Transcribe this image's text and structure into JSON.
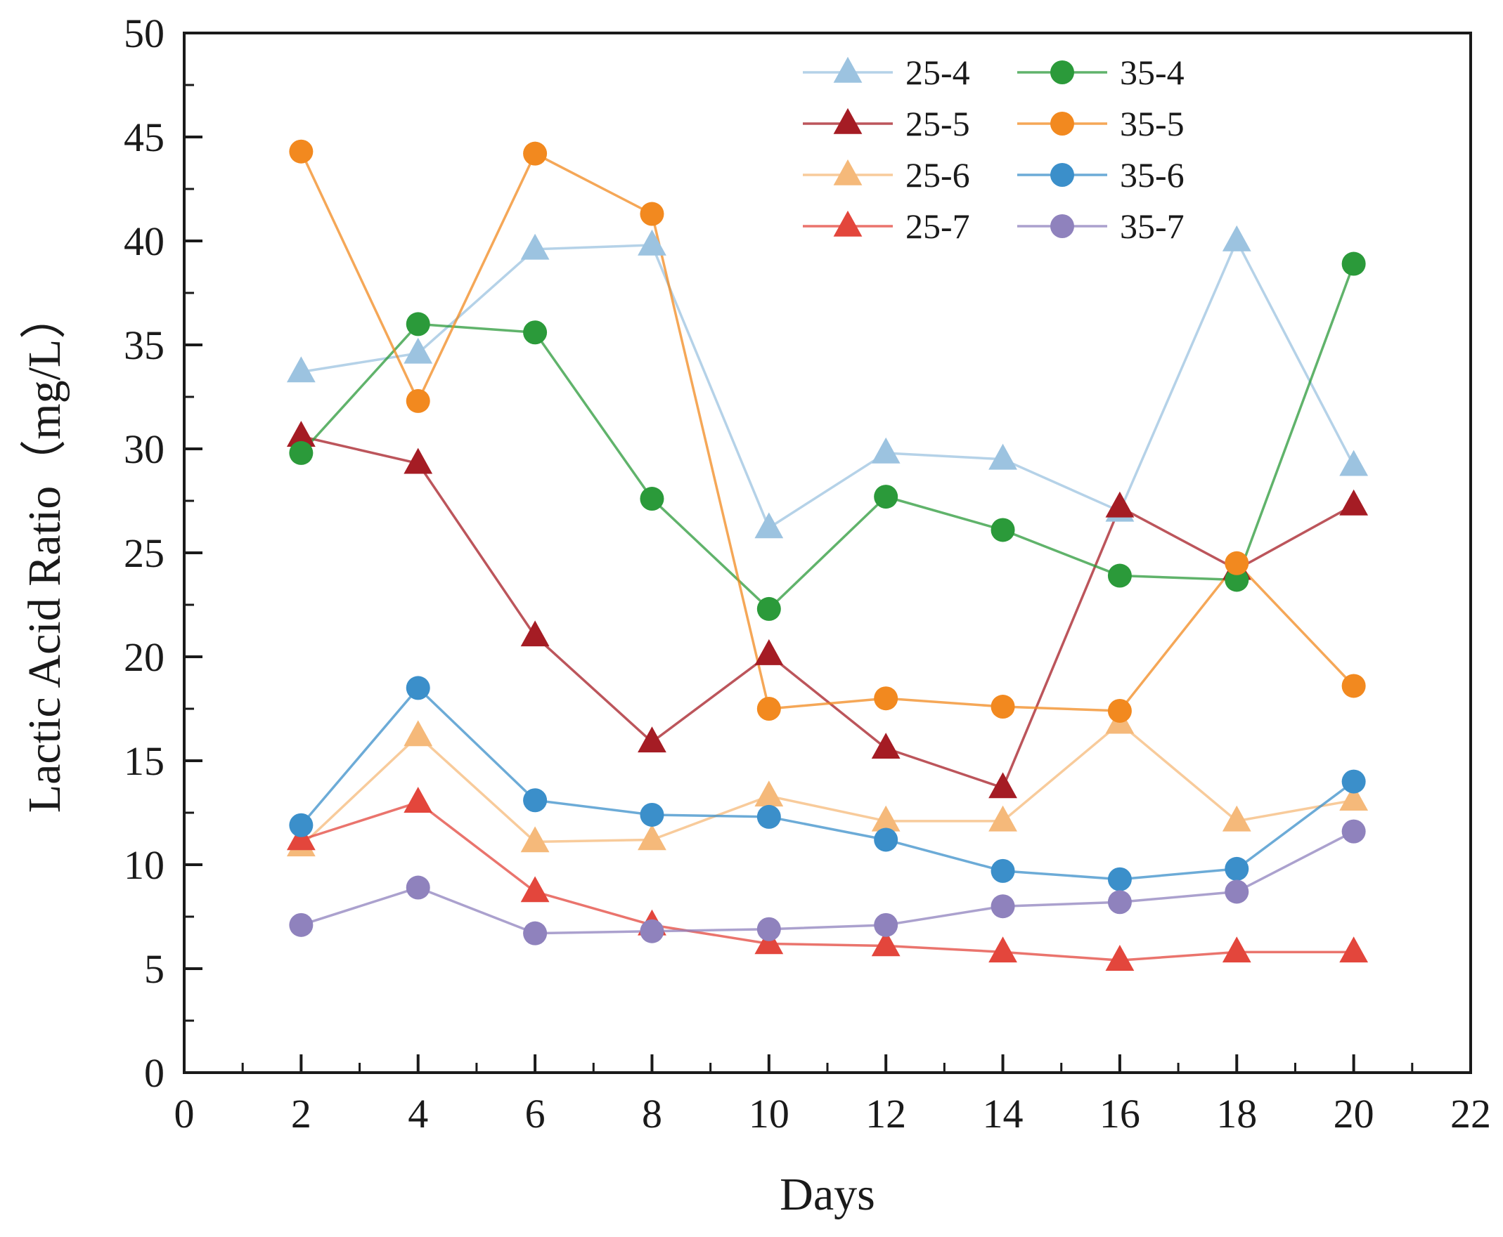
{
  "chart_data": {
    "type": "line",
    "title": "",
    "xlabel": "Days",
    "ylabel": "Lactic Acid Ratio（mg/L）",
    "xlim": [
      0,
      22
    ],
    "ylim": [
      0,
      50
    ],
    "xticks": [
      0,
      2,
      4,
      6,
      8,
      10,
      12,
      14,
      16,
      18,
      20,
      22
    ],
    "yticks": [
      0,
      5,
      10,
      15,
      20,
      25,
      30,
      35,
      40,
      45,
      50
    ],
    "legend_position": "top-right",
    "x": [
      2,
      4,
      6,
      8,
      10,
      12,
      14,
      16,
      18,
      20
    ],
    "series": [
      {
        "name": "25-4",
        "marker": "triangle",
        "color": "#9cc3e0",
        "values": [
          33.7,
          34.6,
          39.6,
          39.8,
          26.2,
          29.8,
          29.5,
          27.0,
          40.0,
          29.2
        ]
      },
      {
        "name": "25-5",
        "marker": "triangle",
        "color": "#a51c24",
        "values": [
          30.6,
          29.3,
          21.0,
          15.9,
          20.1,
          15.6,
          13.7,
          27.2,
          24.2,
          27.3
        ]
      },
      {
        "name": "25-6",
        "marker": "triangle",
        "color": "#f5b97a",
        "values": [
          10.9,
          16.2,
          11.1,
          11.2,
          13.3,
          12.1,
          12.1,
          16.8,
          12.1,
          13.1
        ]
      },
      {
        "name": "25-7",
        "marker": "triangle",
        "color": "#e3463c",
        "values": [
          11.2,
          13.0,
          8.7,
          7.1,
          6.2,
          6.1,
          5.8,
          5.4,
          5.8,
          5.8
        ]
      },
      {
        "name": "35-4",
        "marker": "circle",
        "color": "#2b9a3a",
        "values": [
          29.8,
          36.0,
          35.6,
          27.6,
          22.3,
          27.7,
          26.1,
          23.9,
          23.7,
          38.9
        ]
      },
      {
        "name": "35-5",
        "marker": "circle",
        "color": "#f2891f",
        "values": [
          44.3,
          32.3,
          44.2,
          41.3,
          17.5,
          18.0,
          17.6,
          17.4,
          24.5,
          18.6
        ]
      },
      {
        "name": "35-6",
        "marker": "circle",
        "color": "#3b8fca",
        "values": [
          11.9,
          18.5,
          13.1,
          12.4,
          12.3,
          11.2,
          9.7,
          9.3,
          9.8,
          14.0
        ]
      },
      {
        "name": "35-7",
        "marker": "circle",
        "color": "#8f82bd",
        "values": [
          7.1,
          8.9,
          6.7,
          6.8,
          6.9,
          7.1,
          8.0,
          8.2,
          8.7,
          11.6
        ]
      }
    ]
  }
}
